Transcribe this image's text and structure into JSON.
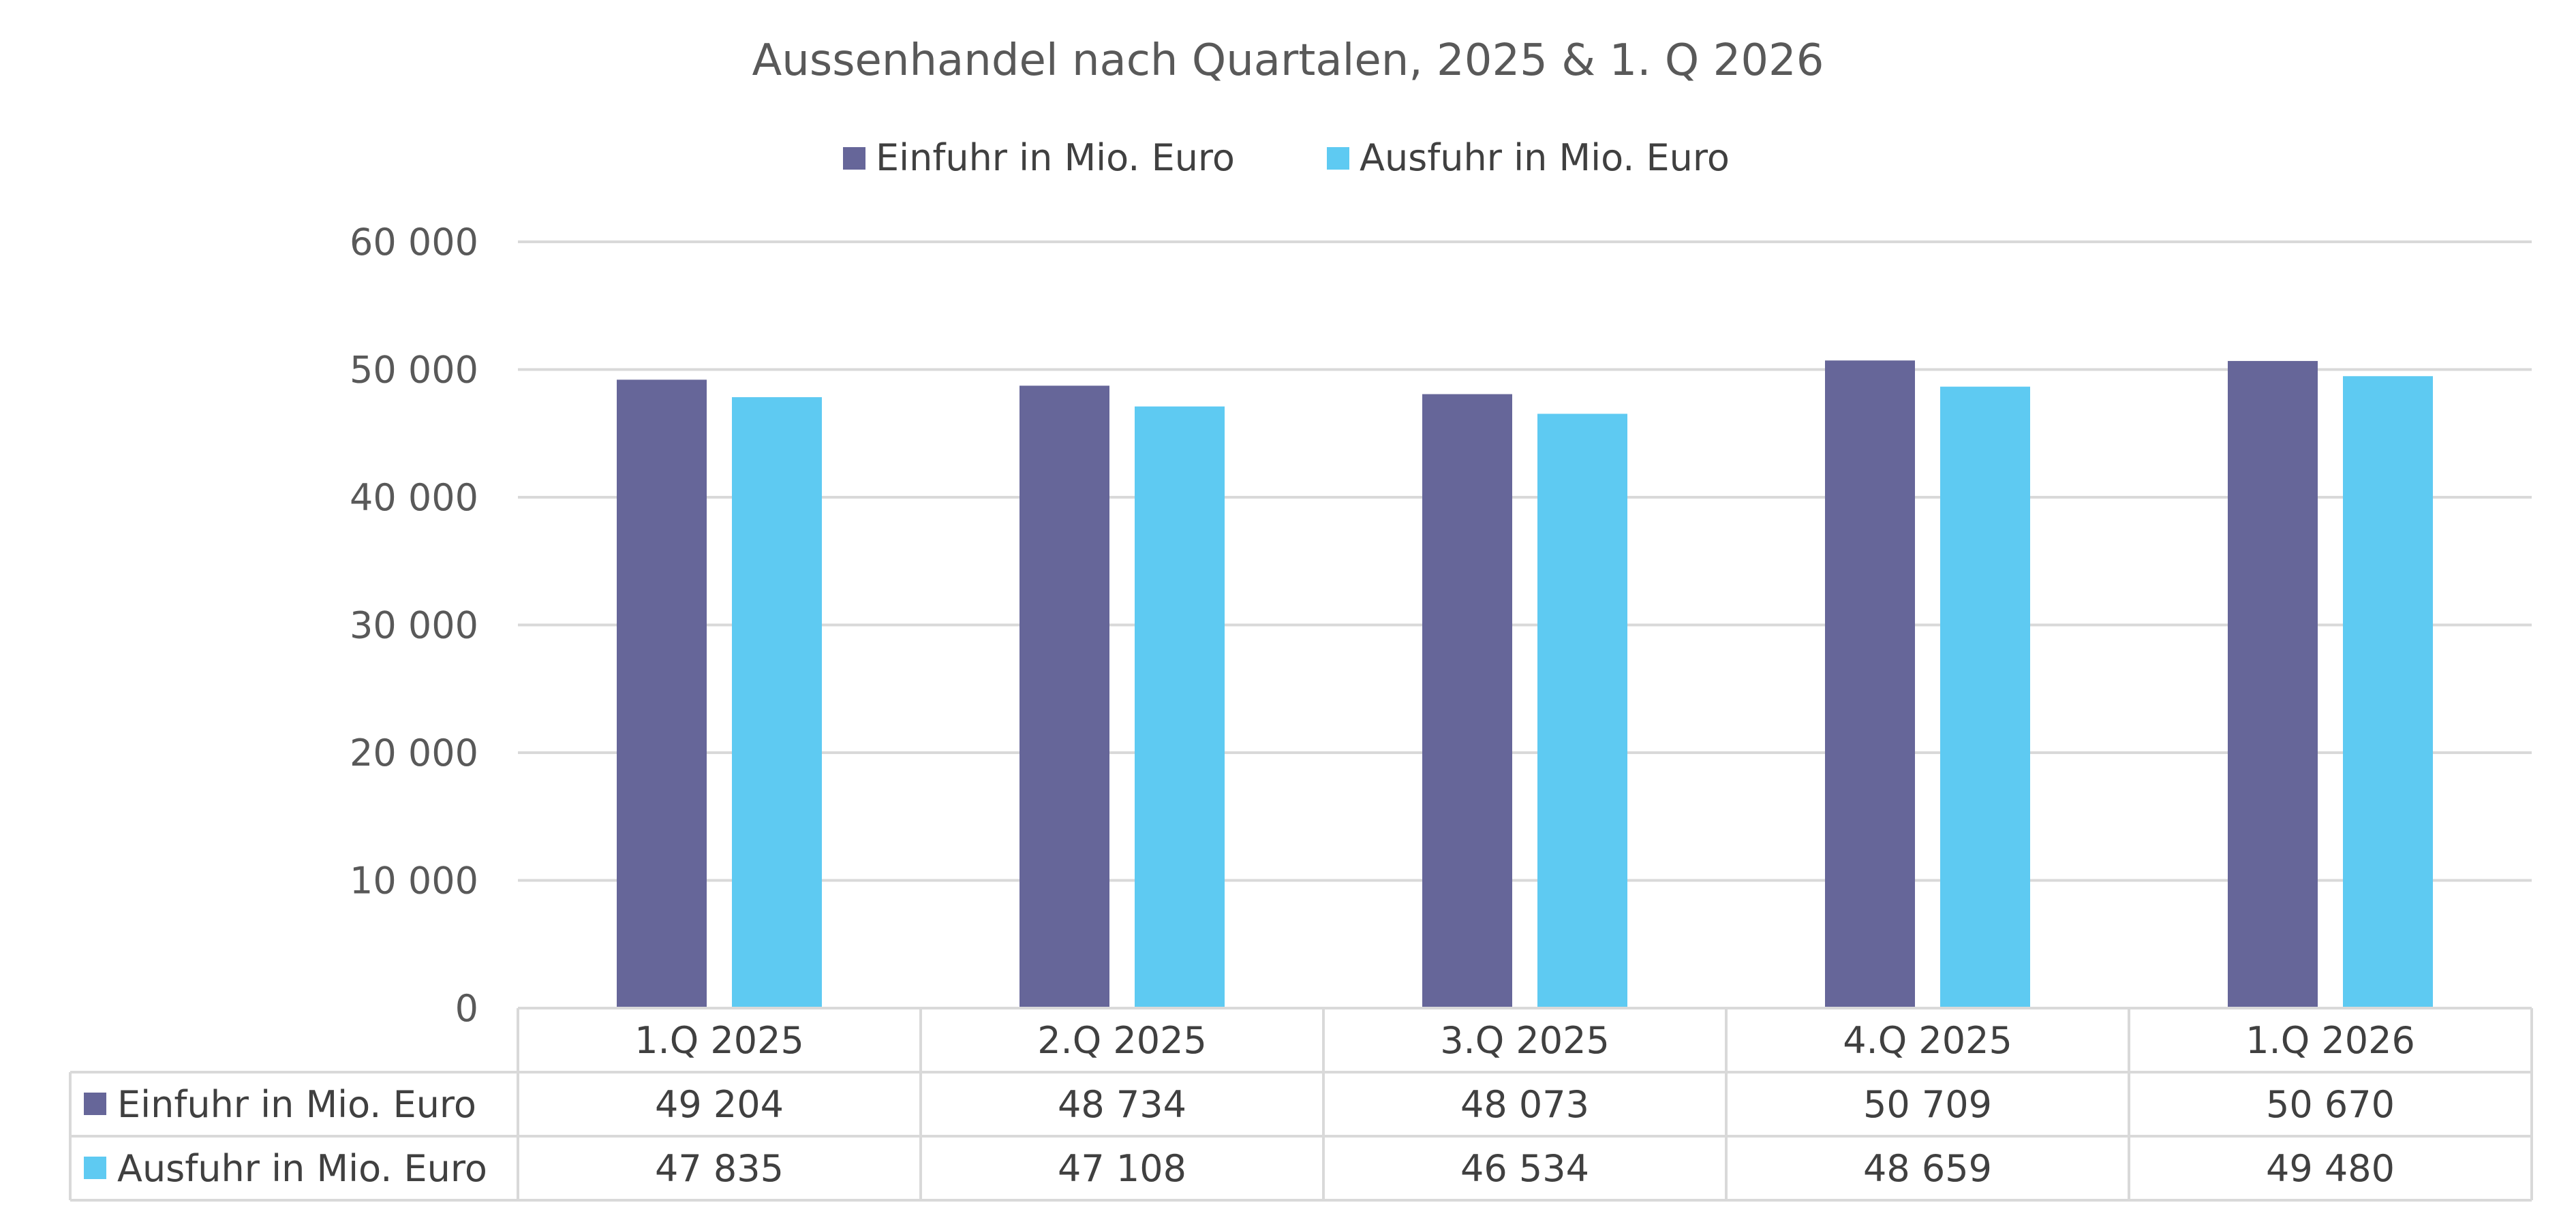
{
  "chart_data": {
    "type": "bar",
    "title": "Aussenhandel nach Quartalen, 2025 & 1. Q 2026",
    "categories": [
      "1.Q 2025",
      "2.Q 2025",
      "3.Q 2025",
      "4.Q 2025",
      "1.Q 2026"
    ],
    "series": [
      {
        "name": "Einfuhr in Mio. Euro",
        "color": "#666699",
        "values": [
          49204,
          48734,
          48073,
          50709,
          50670
        ],
        "labels": [
          "49 204",
          "48 734",
          "48 073",
          "50 709",
          "50 670"
        ]
      },
      {
        "name": "Ausfuhr in Mio. Euro",
        "color": "#5ECAF2",
        "values": [
          47835,
          47108,
          46534,
          48659,
          49480
        ],
        "labels": [
          "47 835",
          "47 108",
          "46 534",
          "48 659",
          "49 480"
        ]
      }
    ],
    "ylim": [
      0,
      60000
    ],
    "yticks": [
      0,
      10000,
      20000,
      30000,
      40000,
      50000,
      60000
    ],
    "ytick_labels": [
      "0",
      "10 000",
      "20 000",
      "30 000",
      "40 000",
      "50 000",
      "60 000"
    ],
    "grid": true,
    "legend_position": "top",
    "data_table": true,
    "xlabel": "",
    "ylabel": ""
  }
}
